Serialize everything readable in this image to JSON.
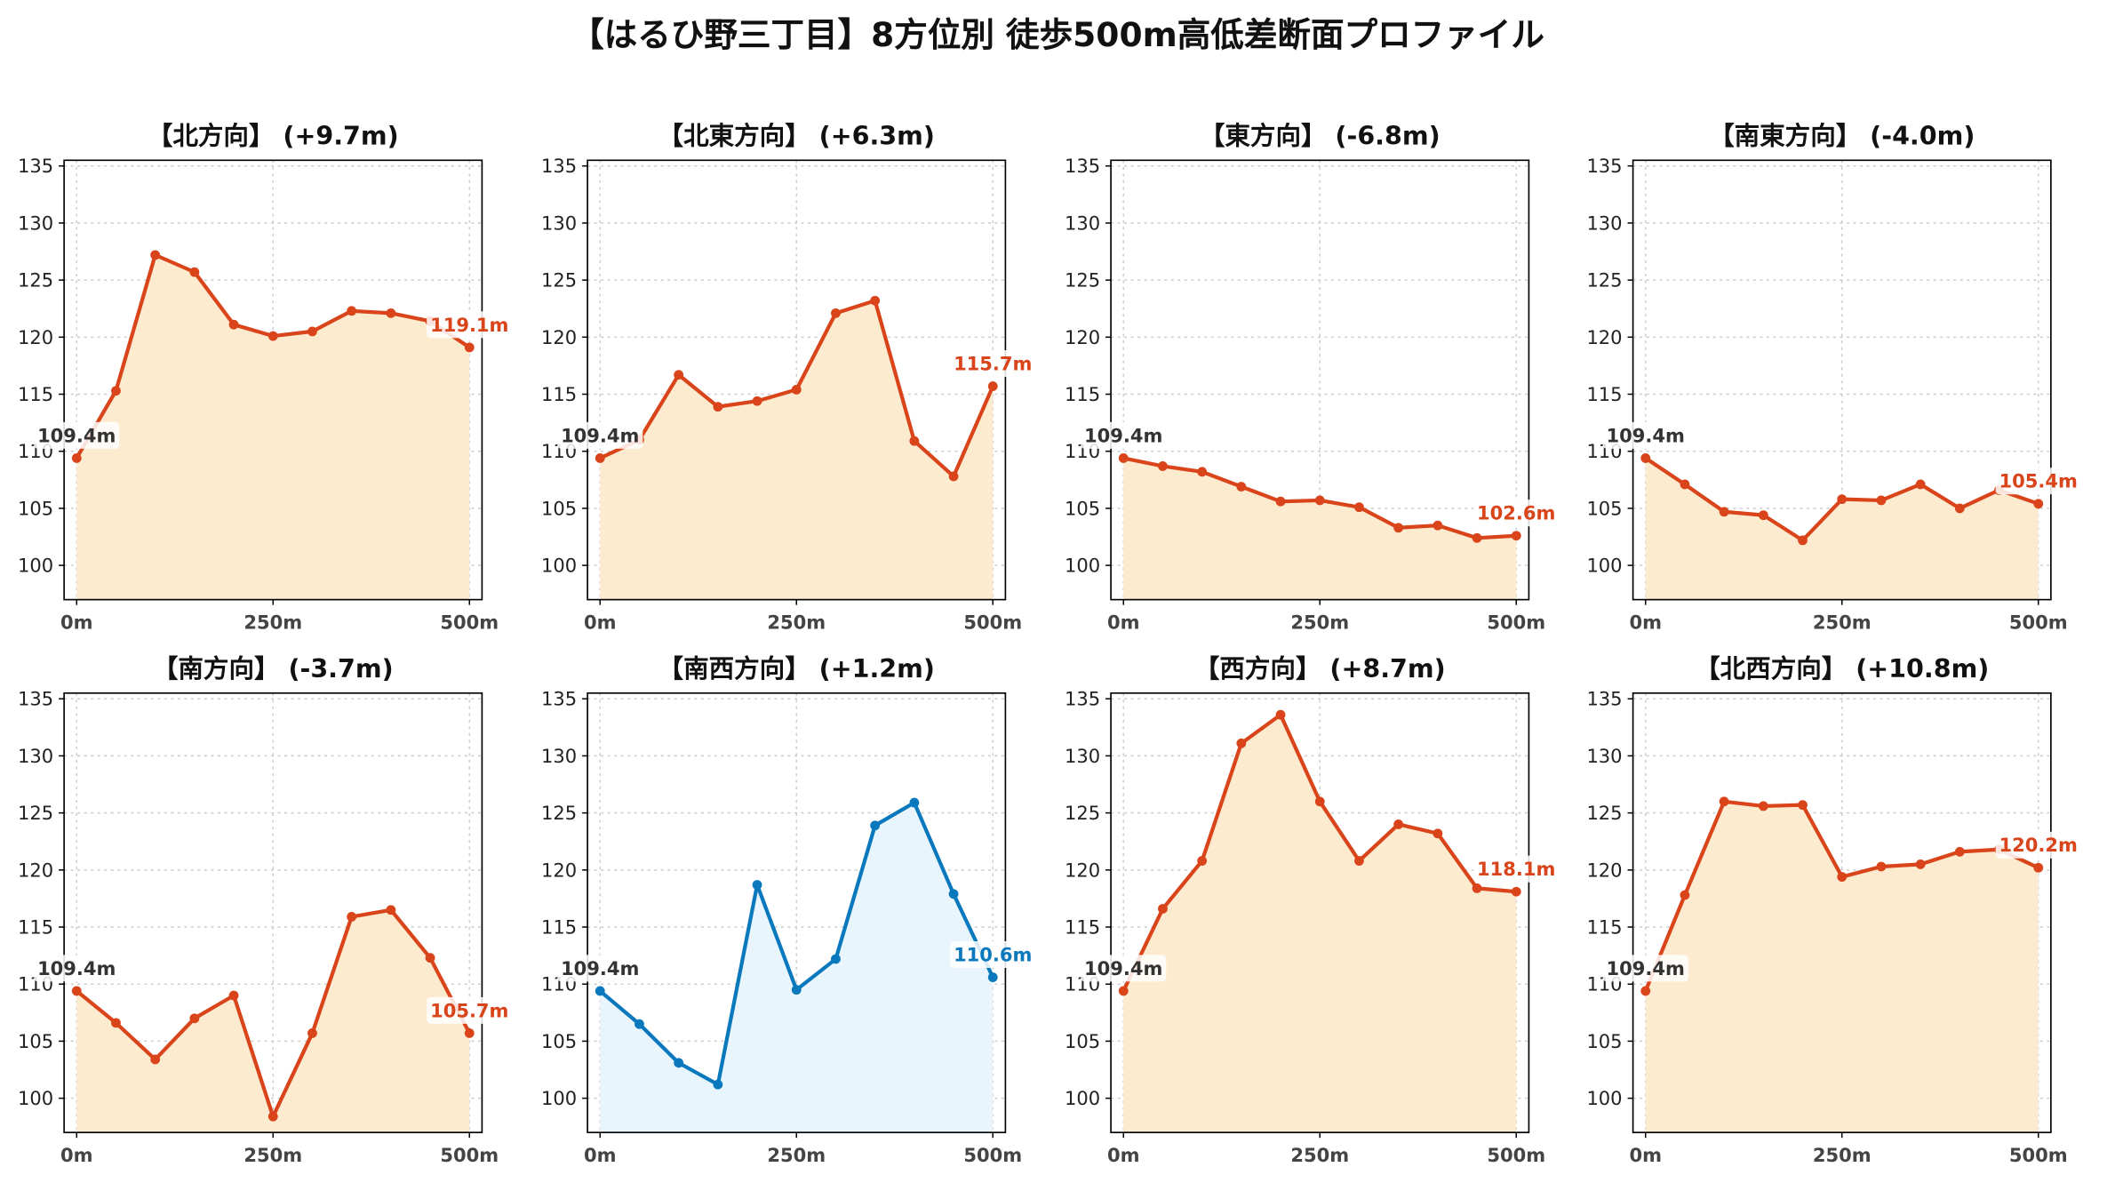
{
  "title": "【はるひ野三丁目】8方位別 徒歩500m高低差断面プロファイル",
  "colors": {
    "up_line": "#d9441a",
    "up_fill": "#fdebd0",
    "down_line": "#0a78bd",
    "down_fill": "#e8f5fc",
    "start_label": "#333333",
    "grid": "#cccccc"
  },
  "chart_data": [
    {
      "type": "area",
      "title": "【北方向】 (+9.7m)",
      "color_scheme": "orange",
      "x": [
        0,
        50,
        100,
        150,
        200,
        250,
        300,
        350,
        400,
        450,
        500
      ],
      "y": [
        109.4,
        115.3,
        127.2,
        125.7,
        121.1,
        120.1,
        120.5,
        122.3,
        122.1,
        121.4,
        119.1
      ],
      "xticks": [
        "0m",
        "250m",
        "500m"
      ],
      "yticks": [
        100,
        105,
        110,
        115,
        120,
        125,
        130,
        135
      ],
      "ylim": [
        97,
        135.5
      ],
      "start_label": "109.4m",
      "end_label": "119.1m",
      "grid": true
    },
    {
      "type": "area",
      "title": "【北東方向】 (+6.3m)",
      "color_scheme": "orange",
      "x": [
        0,
        50,
        100,
        150,
        200,
        250,
        300,
        350,
        400,
        450,
        500
      ],
      "y": [
        109.4,
        111.0,
        116.7,
        113.9,
        114.4,
        115.4,
        122.1,
        123.2,
        110.9,
        107.8,
        115.7
      ],
      "xticks": [
        "0m",
        "250m",
        "500m"
      ],
      "yticks": [
        100,
        105,
        110,
        115,
        120,
        125,
        130,
        135
      ],
      "ylim": [
        97,
        135.5
      ],
      "start_label": "109.4m",
      "end_label": "115.7m",
      "grid": true
    },
    {
      "type": "area",
      "title": "【東方向】 (-6.8m)",
      "color_scheme": "orange",
      "x": [
        0,
        50,
        100,
        150,
        200,
        250,
        300,
        350,
        400,
        450,
        500
      ],
      "y": [
        109.4,
        108.7,
        108.2,
        106.9,
        105.6,
        105.7,
        105.1,
        103.3,
        103.5,
        102.4,
        102.6
      ],
      "xticks": [
        "0m",
        "250m",
        "500m"
      ],
      "yticks": [
        100,
        105,
        110,
        115,
        120,
        125,
        130,
        135
      ],
      "ylim": [
        97,
        135.5
      ],
      "start_label": "109.4m",
      "end_label": "102.6m",
      "grid": true
    },
    {
      "type": "area",
      "title": "【南東方向】 (-4.0m)",
      "color_scheme": "orange",
      "x": [
        0,
        50,
        100,
        150,
        200,
        250,
        300,
        350,
        400,
        450,
        500
      ],
      "y": [
        109.4,
        107.1,
        104.7,
        104.4,
        102.2,
        105.8,
        105.7,
        107.1,
        105.0,
        106.6,
        105.4
      ],
      "xticks": [
        "0m",
        "250m",
        "500m"
      ],
      "yticks": [
        100,
        105,
        110,
        115,
        120,
        125,
        130,
        135
      ],
      "ylim": [
        97,
        135.5
      ],
      "start_label": "109.4m",
      "end_label": "105.4m",
      "grid": true
    },
    {
      "type": "area",
      "title": "【南方向】 (-3.7m)",
      "color_scheme": "orange",
      "x": [
        0,
        50,
        100,
        150,
        200,
        250,
        300,
        350,
        400,
        450,
        500
      ],
      "y": [
        109.4,
        106.6,
        103.4,
        107.0,
        109.0,
        98.4,
        105.7,
        115.9,
        116.5,
        112.3,
        105.7
      ],
      "xticks": [
        "0m",
        "250m",
        "500m"
      ],
      "yticks": [
        100,
        105,
        110,
        115,
        120,
        125,
        130,
        135
      ],
      "ylim": [
        97,
        135.5
      ],
      "start_label": "109.4m",
      "end_label": "105.7m",
      "grid": true
    },
    {
      "type": "area",
      "title": "【南西方向】 (+1.2m)",
      "color_scheme": "blue",
      "x": [
        0,
        50,
        100,
        150,
        200,
        250,
        300,
        350,
        400,
        450,
        500
      ],
      "y": [
        109.4,
        106.5,
        103.1,
        101.2,
        118.7,
        109.5,
        112.2,
        123.9,
        125.9,
        117.9,
        110.6
      ],
      "xticks": [
        "0m",
        "250m",
        "500m"
      ],
      "yticks": [
        100,
        105,
        110,
        115,
        120,
        125,
        130,
        135
      ],
      "ylim": [
        97,
        135.5
      ],
      "start_label": "109.4m",
      "end_label": "110.6m",
      "grid": true
    },
    {
      "type": "area",
      "title": "【西方向】 (+8.7m)",
      "color_scheme": "orange",
      "x": [
        0,
        50,
        100,
        150,
        200,
        250,
        300,
        350,
        400,
        450,
        500
      ],
      "y": [
        109.4,
        116.6,
        120.8,
        131.1,
        133.6,
        126.0,
        120.8,
        124.0,
        123.2,
        118.4,
        118.1
      ],
      "xticks": [
        "0m",
        "250m",
        "500m"
      ],
      "yticks": [
        100,
        105,
        110,
        115,
        120,
        125,
        130,
        135
      ],
      "ylim": [
        97,
        135.5
      ],
      "start_label": "109.4m",
      "end_label": "118.1m",
      "grid": true
    },
    {
      "type": "area",
      "title": "【北西方向】 (+10.8m)",
      "color_scheme": "orange",
      "x": [
        0,
        50,
        100,
        150,
        200,
        250,
        300,
        350,
        400,
        450,
        500
      ],
      "y": [
        109.4,
        117.8,
        126.0,
        125.6,
        125.7,
        119.4,
        120.3,
        120.5,
        121.6,
        121.8,
        120.2
      ],
      "xticks": [
        "0m",
        "250m",
        "500m"
      ],
      "yticks": [
        100,
        105,
        110,
        115,
        120,
        125,
        130,
        135
      ],
      "ylim": [
        97,
        135.5
      ],
      "start_label": "109.4m",
      "end_label": "120.2m",
      "grid": true
    }
  ]
}
